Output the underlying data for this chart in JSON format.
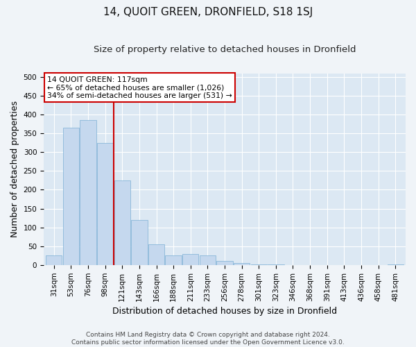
{
  "title": "14, QUOIT GREEN, DRONFIELD, S18 1SJ",
  "subtitle": "Size of property relative to detached houses in Dronfield",
  "xlabel": "Distribution of detached houses by size in Dronfield",
  "ylabel": "Number of detached properties",
  "footer_line1": "Contains HM Land Registry data © Crown copyright and database right 2024.",
  "footer_line2": "Contains public sector information licensed under the Open Government Licence v3.0.",
  "categories": [
    "31sqm",
    "53sqm",
    "76sqm",
    "98sqm",
    "121sqm",
    "143sqm",
    "166sqm",
    "188sqm",
    "211sqm",
    "233sqm",
    "256sqm",
    "278sqm",
    "301sqm",
    "323sqm",
    "346sqm",
    "368sqm",
    "391sqm",
    "413sqm",
    "436sqm",
    "458sqm",
    "481sqm"
  ],
  "values": [
    25,
    365,
    385,
    325,
    225,
    120,
    55,
    25,
    30,
    25,
    10,
    5,
    2,
    1,
    0,
    0,
    0,
    0,
    0,
    0,
    2
  ],
  "bar_color": "#c5d8ee",
  "bar_edge_color": "#7aafd4",
  "vline_x": 3.5,
  "vline_color": "#cc0000",
  "annotation_text": "14 QUOIT GREEN: 117sqm\n← 65% of detached houses are smaller (1,026)\n34% of semi-detached houses are larger (531) →",
  "annotation_box_facecolor": "#ffffff",
  "annotation_box_edgecolor": "#cc0000",
  "ylim": [
    0,
    510
  ],
  "yticks": [
    0,
    50,
    100,
    150,
    200,
    250,
    300,
    350,
    400,
    450,
    500
  ],
  "background_color": "#dce8f3",
  "fig_facecolor": "#f0f4f8",
  "title_fontsize": 11,
  "subtitle_fontsize": 9.5,
  "axis_label_fontsize": 9,
  "tick_fontsize": 7.5,
  "footer_fontsize": 6.5
}
